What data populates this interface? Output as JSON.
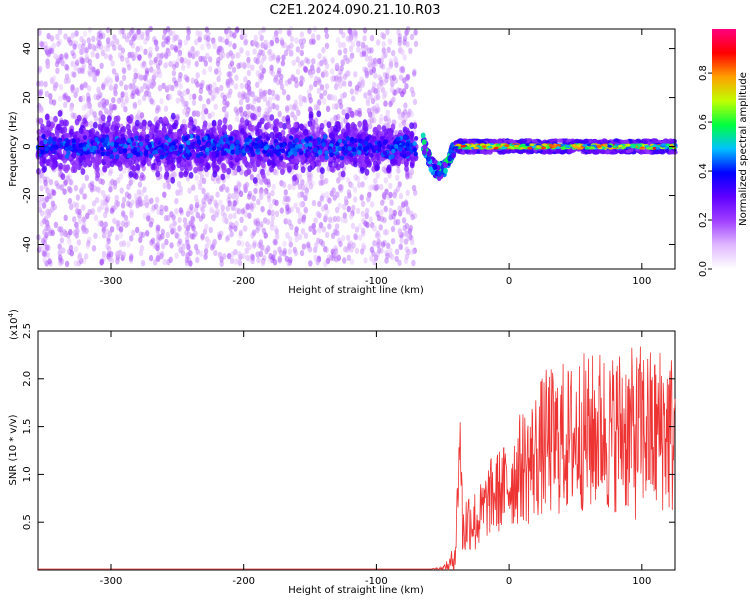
{
  "title": "C2E1.2024.090.21.10.R03",
  "chart_data": [
    {
      "type": "heatmap",
      "panel": "top",
      "xlabel": "Height of straight line (km)",
      "ylabel": "Frequency (Hz)",
      "xlim": [
        -355,
        125
      ],
      "ylim": [
        -50,
        48
      ],
      "x_ticks": [
        -300,
        -200,
        -100,
        0,
        100
      ],
      "x_tick_labels": [
        "-300",
        "-200",
        "-100",
        "0",
        "100"
      ],
      "y_ticks": [
        -40,
        -20,
        0,
        20,
        40
      ],
      "y_tick_labels": [
        "-40",
        "-20",
        "0",
        "20",
        "40"
      ],
      "colorbar": {
        "label": "Normalized spectral amplitude",
        "range": [
          0,
          0.98
        ],
        "ticks": [
          0,
          0.2,
          0.4,
          0.6,
          0.8
        ],
        "tick_labels": [
          "0.0",
          "0.2",
          "0.4",
          "0.6",
          "0.8"
        ],
        "colormap": [
          "#ffffff",
          "#e0b8ff",
          "#a040ff",
          "#6000ff",
          "#0000ff",
          "#00c0ff",
          "#00ff40",
          "#c0ff00",
          "#ffa000",
          "#ff0000",
          "#ff0080"
        ]
      },
      "regions": [
        {
          "name": "diffuse",
          "x": [
            -355,
            -70
          ],
          "freq_spread_hz": 48,
          "core_band_hz": [
            -7,
            7
          ],
          "peak_amplitude": 0.3
        },
        {
          "name": "transition",
          "x": [
            -65,
            -40
          ],
          "freq_center_hz": [
            2,
            -10
          ],
          "peak_amplitude": 0.6
        },
        {
          "name": "coherent",
          "x": [
            -40,
            125
          ],
          "freq_center_hz": 0,
          "band_halfwidth_hz": 2.5,
          "peak_amplitude": 0.97
        }
      ]
    },
    {
      "type": "line",
      "panel": "bottom",
      "xlabel": "Height of straight line (km)",
      "ylabel": "SNR (10 * v/v)",
      "scale_label": "(x10",
      "scale_exponent": "4",
      "scale_close": ")",
      "xlim": [
        -355,
        125
      ],
      "ylim": [
        0,
        2.5
      ],
      "x_ticks": [
        -300,
        -200,
        -100,
        0,
        100
      ],
      "x_tick_labels": [
        "-300",
        "-200",
        "-100",
        "0",
        "100"
      ],
      "y_ticks": [
        0.5,
        1.0,
        1.5,
        2.0,
        2.5
      ],
      "y_tick_labels": [
        "0.5",
        "1.0",
        "1.5",
        "2.0",
        "2.5"
      ],
      "color": "#ee3333",
      "series": [
        {
          "x": [
            -355,
            -300,
            -250,
            -200,
            -150,
            -100,
            -60,
            -50,
            -45,
            -42,
            -40,
            -37,
            -35,
            -30,
            -25,
            -20,
            -15,
            -10,
            -5,
            0,
            5,
            10,
            15,
            20,
            25,
            30,
            35,
            40,
            45,
            50,
            55,
            60,
            65,
            70,
            75,
            80,
            85,
            90,
            95,
            100,
            105,
            110,
            115,
            120,
            125
          ],
          "values": [
            0.01,
            0.01,
            0.01,
            0.01,
            0.01,
            0.01,
            0.01,
            0.02,
            0.05,
            0.12,
            0.3,
            1.5,
            0.4,
            0.55,
            0.5,
            0.6,
            0.75,
            0.8,
            0.85,
            0.9,
            1.0,
            1.1,
            1.1,
            1.2,
            1.3,
            1.35,
            1.3,
            1.4,
            1.35,
            1.4,
            1.45,
            1.4,
            1.45,
            1.5,
            1.4,
            1.45,
            1.5,
            1.45,
            1.4,
            1.5,
            1.45,
            1.4,
            1.5,
            1.45,
            1.4
          ],
          "noise_envelope": [
            0,
            0,
            0,
            0,
            0,
            0,
            0,
            0.02,
            0.08,
            0.15,
            0.3,
            0.35,
            0.35,
            0.35,
            0.35,
            0.35,
            0.4,
            0.45,
            0.45,
            0.5,
            0.55,
            0.6,
            0.65,
            0.7,
            0.75,
            0.8,
            0.8,
            0.8,
            0.8,
            0.85,
            0.85,
            0.85,
            0.85,
            0.85,
            0.85,
            0.85,
            0.9,
            0.9,
            0.9,
            0.9,
            0.9,
            0.9,
            0.9,
            0.9,
            0.9
          ]
        }
      ]
    }
  ]
}
